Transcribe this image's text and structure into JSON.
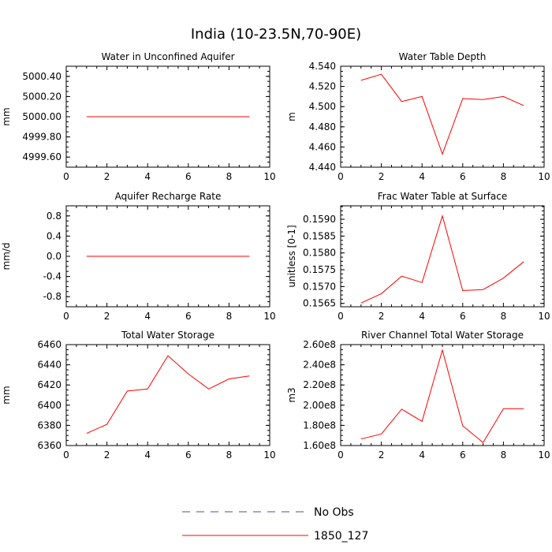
{
  "title": "India (10-23.5N,70-90E)",
  "legend": {
    "items": [
      {
        "label": "No Obs",
        "color": "#4b4b9a",
        "style": "dashed"
      },
      {
        "label": "1850_127",
        "color": "#ff0000",
        "style": "solid"
      }
    ]
  },
  "chart_data": [
    {
      "type": "line",
      "title": "Water in Unconfined Aquifer",
      "ylabel": "mm",
      "xlim": [
        0,
        10
      ],
      "ylim": [
        4999.5,
        5000.5
      ],
      "xticks": [
        0,
        2,
        4,
        6,
        8,
        10
      ],
      "yticks": [
        4999.6,
        4999.8,
        5000.0,
        5000.2,
        5000.4
      ],
      "yticklabels": [
        "4999.60",
        "4999.80",
        "5000.00",
        "5000.20",
        "5000.40"
      ],
      "series": [
        {
          "name": "1850_127",
          "x": [
            1,
            2,
            3,
            4,
            5,
            6,
            7,
            8,
            9
          ],
          "values": [
            5000,
            5000,
            5000,
            5000,
            5000,
            5000,
            5000,
            5000,
            5000
          ]
        }
      ]
    },
    {
      "type": "line",
      "title": "Water Table Depth",
      "ylabel": "m",
      "xlim": [
        0,
        10
      ],
      "ylim": [
        4.44,
        4.54
      ],
      "xticks": [
        0,
        2,
        4,
        6,
        8,
        10
      ],
      "yticks": [
        4.44,
        4.46,
        4.48,
        4.5,
        4.52,
        4.54
      ],
      "yticklabels": [
        "4.440",
        "4.460",
        "4.480",
        "4.500",
        "4.520",
        "4.540"
      ],
      "series": [
        {
          "name": "1850_127",
          "x": [
            1,
            2,
            3,
            4,
            5,
            6,
            7,
            8,
            9
          ],
          "values": [
            4.526,
            4.532,
            4.505,
            4.51,
            4.453,
            4.508,
            4.507,
            4.51,
            4.501
          ]
        }
      ]
    },
    {
      "type": "line",
      "title": "Aquifer Recharge Rate",
      "ylabel": "mm/d",
      "xlim": [
        0,
        10
      ],
      "ylim": [
        -1.0,
        1.0
      ],
      "xticks": [
        0,
        2,
        4,
        6,
        8,
        10
      ],
      "yticks": [
        -0.8,
        -0.4,
        0.0,
        0.4,
        0.8
      ],
      "yticklabels": [
        "-0.8",
        "-0.4",
        "0.0",
        "0.4",
        "0.8"
      ],
      "series": [
        {
          "name": "1850_127",
          "x": [
            1,
            2,
            3,
            4,
            5,
            6,
            7,
            8,
            9
          ],
          "values": [
            0,
            0,
            0,
            0,
            0,
            0,
            0,
            0,
            0
          ]
        }
      ]
    },
    {
      "type": "line",
      "title": "Frac Water Table at Surface",
      "ylabel": "unitless [0-1]",
      "xlim": [
        0,
        10
      ],
      "ylim": [
        0.1564,
        0.1594
      ],
      "xticks": [
        0,
        2,
        4,
        6,
        8,
        10
      ],
      "yticks": [
        0.1565,
        0.157,
        0.1575,
        0.158,
        0.1585,
        0.159
      ],
      "yticklabels": [
        "0.1565",
        "0.1570",
        "0.1575",
        "0.1580",
        "0.1585",
        "0.1590"
      ],
      "series": [
        {
          "name": "1850_127",
          "x": [
            1,
            2,
            3,
            4,
            5,
            6,
            7,
            8,
            9
          ],
          "values": [
            0.15651,
            0.15679,
            0.15731,
            0.15712,
            0.1591,
            0.15688,
            0.15691,
            0.15725,
            0.15774
          ]
        }
      ]
    },
    {
      "type": "line",
      "title": "Total Water Storage",
      "ylabel": "mm",
      "xlim": [
        0,
        10
      ],
      "ylim": [
        6360,
        6460
      ],
      "xticks": [
        0,
        2,
        4,
        6,
        8,
        10
      ],
      "yticks": [
        6360,
        6380,
        6400,
        6420,
        6440,
        6460
      ],
      "yticklabels": [
        "6360",
        "6380",
        "6400",
        "6420",
        "6440",
        "6460"
      ],
      "series": [
        {
          "name": "1850_127",
          "x": [
            1,
            2,
            3,
            4,
            5,
            6,
            7,
            8,
            9
          ],
          "values": [
            6372,
            6381,
            6414,
            6416,
            6449,
            6431,
            6416,
            6426,
            6429
          ]
        }
      ]
    },
    {
      "type": "line",
      "title": "River Channel Total Water Storage",
      "ylabel": "m3",
      "xlim": [
        0,
        10
      ],
      "ylim": [
        160000000,
        260000000
      ],
      "xticks": [
        0,
        2,
        4,
        6,
        8,
        10
      ],
      "yticks": [
        160000000,
        180000000,
        200000000,
        220000000,
        240000000,
        260000000
      ],
      "yticklabels": [
        "1.60e8",
        "1.80e8",
        "2.00e8",
        "2.20e8",
        "2.40e8",
        "2.60e8"
      ],
      "series": [
        {
          "name": "1850_127",
          "x": [
            1,
            2,
            3,
            4,
            5,
            6,
            7,
            8,
            9
          ],
          "values": [
            166500000,
            171500000,
            196000000,
            184000000,
            254500000,
            179500000,
            163000000,
            196500000,
            196500000
          ]
        }
      ]
    }
  ]
}
